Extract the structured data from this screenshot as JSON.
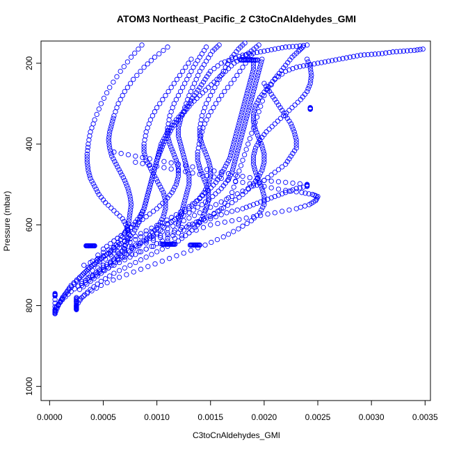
{
  "chart_data": {
    "type": "scatter",
    "title": "ATOM3 Northeast_Pacific_2 C3toCnAldehydes_GMI",
    "xlabel": "C3toCnAldehydes_GMI",
    "ylabel": "Pressure (mbar)",
    "xlim": [
      -8e-05,
      0.00355
    ],
    "ylim": [
      1035,
      145
    ],
    "y_reversed": true,
    "x_ticks": [
      "0.0000",
      "0.0005",
      "0.0010",
      "0.0015",
      "0.0020",
      "0.0025",
      "0.0030",
      "0.0035"
    ],
    "x_tick_values": [
      0,
      0.0005,
      0.001,
      0.0015,
      0.002,
      0.0025,
      0.003,
      0.0035
    ],
    "y_ticks": [
      "200",
      "400",
      "600",
      "800",
      "1000"
    ],
    "y_tick_values": [
      200,
      400,
      600,
      800,
      1000
    ],
    "marker": "open-circle",
    "color": "#0000ff",
    "grid": false,
    "series": [
      {
        "x": [
          5e-05,
          8e-05,
          0.00012,
          0.00018,
          0.00025,
          0.00032,
          0.0004,
          0.0005,
          0.0006,
          0.0007,
          0.00078,
          0.00082,
          0.00085,
          0.00088,
          0.0009,
          0.00092,
          0.00094,
          0.00096,
          0.00098,
          0.001,
          0.00102,
          0.00104,
          0.00108,
          0.00112,
          0.00118,
          0.00125,
          0.0013,
          0.00135,
          0.0014,
          0.00145,
          0.0015,
          0.0016,
          0.0017,
          0.0018,
          0.0019,
          0.002,
          0.0021,
          0.0022,
          0.0023,
          0.0024
        ],
        "y": [
          820,
          800,
          780,
          760,
          740,
          720,
          700,
          680,
          660,
          640,
          620,
          600,
          580,
          560,
          540,
          520,
          500,
          480,
          460,
          440,
          420,
          400,
          380,
          360,
          340,
          320,
          300,
          280,
          260,
          240,
          220,
          200,
          190,
          180,
          175,
          170,
          165,
          160,
          158,
          155
        ]
      },
      {
        "x": [
          5e-05,
          0.0001,
          0.00015,
          0.0002,
          0.00028,
          0.00036,
          0.00045,
          0.00055,
          0.00062,
          0.00068,
          0.00072,
          0.00074,
          0.00075,
          0.00076,
          0.00075,
          0.00073,
          0.0007,
          0.00066,
          0.00062,
          0.00058,
          0.00056,
          0.00055,
          0.00056,
          0.00058,
          0.0006,
          0.00064,
          0.0007,
          0.00078,
          0.00088,
          0.00098,
          0.0011
        ],
        "y": [
          810,
          790,
          770,
          750,
          730,
          710,
          690,
          670,
          650,
          630,
          610,
          590,
          570,
          550,
          530,
          510,
          490,
          470,
          450,
          430,
          410,
          390,
          370,
          350,
          330,
          300,
          270,
          240,
          210,
          185,
          160
        ]
      },
      {
        "x": [
          6e-05,
          0.00012,
          0.0002,
          0.0003,
          0.0004,
          0.0005,
          0.0006,
          0.00068,
          0.00072,
          0.00074,
          0.00072,
          0.00068,
          0.0006,
          0.00052,
          0.00046,
          0.00042,
          0.00038,
          0.00036,
          0.00035,
          0.00035,
          0.00036,
          0.00038,
          0.00042,
          0.00048,
          0.00056,
          0.00066,
          0.00076,
          0.00086
        ],
        "y": [
          805,
          785,
          765,
          745,
          725,
          705,
          685,
          665,
          645,
          625,
          605,
          585,
          565,
          545,
          525,
          505,
          485,
          465,
          445,
          425,
          400,
          370,
          340,
          300,
          260,
          220,
          185,
          155
        ]
      },
      {
        "x": [
          0.00025,
          0.0003,
          0.00038,
          0.00048,
          0.0006,
          0.00075,
          0.0009,
          0.00105,
          0.0012,
          0.0013,
          0.00138,
          0.00143,
          0.00146,
          0.00148,
          0.00148,
          0.00146,
          0.00143,
          0.0014,
          0.00138,
          0.00138,
          0.0014,
          0.00143,
          0.00148,
          0.00155,
          0.00163,
          0.00172,
          0.0018,
          0.00188
        ],
        "y": [
          800,
          780,
          760,
          740,
          720,
          700,
          680,
          660,
          640,
          620,
          600,
          580,
          560,
          540,
          520,
          500,
          480,
          460,
          440,
          420,
          390,
          360,
          330,
          300,
          270,
          240,
          210,
          180
        ]
      },
      {
        "x": [
          0.00025,
          0.00035,
          0.00048,
          0.00065,
          0.00085,
          0.00105,
          0.00125,
          0.00145,
          0.00162,
          0.00176,
          0.00188,
          0.00196,
          0.002,
          0.002,
          0.00198,
          0.00195,
          0.00192,
          0.0019,
          0.0019,
          0.00192,
          0.00196,
          0.00202,
          0.0021,
          0.00218,
          0.00226,
          0.00234,
          0.0024,
          0.00243,
          0.00244,
          0.00243,
          0.0024
        ],
        "y": [
          790,
          770,
          750,
          730,
          710,
          690,
          670,
          650,
          630,
          610,
          590,
          570,
          550,
          530,
          510,
          490,
          470,
          450,
          430,
          410,
          390,
          370,
          350,
          330,
          310,
          290,
          270,
          250,
          230,
          210,
          190
        ]
      },
      {
        "x": [
          0.00035,
          0.0005,
          0.0007,
          0.0009,
          0.0011,
          0.0013,
          0.0015,
          0.0017,
          0.0019,
          0.0021,
          0.0023,
          0.00242,
          0.00248,
          0.0025,
          0.00245,
          0.00235,
          0.0022,
          0.002,
          0.0018,
          0.0016,
          0.0014,
          0.0012,
          0.001,
          0.0008
        ],
        "y": [
          720,
          700,
          680,
          660,
          640,
          620,
          600,
          590,
          580,
          570,
          560,
          550,
          540,
          530,
          525,
          520,
          515,
          505,
          495,
          485,
          475,
          465,
          455,
          445
        ]
      },
      {
        "x": [
          0.0003,
          0.00045,
          0.0006,
          0.00075,
          0.0009,
          0.00105,
          0.0012,
          0.00135,
          0.0015,
          0.00165,
          0.0018,
          0.0019,
          0.002,
          0.0021,
          0.0022,
          0.0023,
          0.0024,
          0.0024,
          0.0022,
          0.002,
          0.0018,
          0.0016,
          0.0014,
          0.0012,
          0.001,
          0.0008,
          0.0006
        ],
        "y": [
          740,
          720,
          700,
          680,
          660,
          640,
          620,
          600,
          585,
          570,
          560,
          550,
          540,
          530,
          520,
          510,
          505,
          500,
          495,
          490,
          480,
          470,
          460,
          450,
          440,
          430,
          420
        ]
      },
      {
        "x": [
          0.00032,
          0.0005,
          0.0007,
          0.0009,
          0.0011,
          0.0013,
          0.0015,
          0.0016,
          0.0017,
          0.00175,
          0.0018,
          0.00185,
          0.0019,
          0.00195,
          0.002,
          0.0021,
          0.0022,
          0.0023,
          0.0024,
          0.0025,
          0.0026,
          0.0027,
          0.0028,
          0.0029,
          0.003,
          0.0031,
          0.0032,
          0.0033,
          0.0034,
          0.00348
        ],
        "y": [
          700,
          680,
          660,
          640,
          620,
          600,
          580,
          560,
          520,
          480,
          440,
          400,
          360,
          320,
          280,
          240,
          220,
          210,
          205,
          200,
          195,
          190,
          185,
          180,
          178,
          176,
          172,
          170,
          168,
          165
        ]
      },
      {
        "x": [
          0.0004,
          0.00055,
          0.0007,
          0.00085,
          0.001,
          0.00115,
          0.0013,
          0.00142,
          0.00152,
          0.0016,
          0.00166,
          0.0017,
          0.00172,
          0.00174,
          0.00176,
          0.00178,
          0.0018,
          0.00182,
          0.00184,
          0.00186,
          0.00188,
          0.0019,
          0.00192,
          0.00194,
          0.00196,
          0.00198
        ],
        "y": [
          690,
          670,
          650,
          630,
          610,
          590,
          570,
          550,
          530,
          510,
          490,
          470,
          450,
          430,
          410,
          390,
          370,
          350,
          330,
          310,
          290,
          270,
          250,
          230,
          210,
          190
        ]
      },
      {
        "x": [
          0.00045,
          0.0006,
          0.00075,
          0.0009,
          0.00105,
          0.00118,
          0.0013,
          0.0014,
          0.00148,
          0.00155,
          0.0016,
          0.00164,
          0.00168,
          0.0017,
          0.00172,
          0.00174,
          0.00176,
          0.00178,
          0.0018,
          0.00182,
          0.00184,
          0.00186,
          0.00188,
          0.0019,
          0.0019
        ],
        "y": [
          675,
          655,
          635,
          615,
          595,
          575,
          555,
          535,
          515,
          495,
          475,
          455,
          435,
          415,
          395,
          375,
          355,
          335,
          315,
          295,
          275,
          255,
          235,
          215,
          195
        ]
      },
      {
        "x": [
          0.0005,
          0.0006,
          0.0007,
          0.00078,
          0.00084,
          0.00088,
          0.0009,
          0.00092,
          0.00094,
          0.00096,
          0.00098,
          0.001,
          0.00103,
          0.00106,
          0.0011,
          0.00114,
          0.0012,
          0.00126,
          0.00132,
          0.0014,
          0.00148,
          0.00156,
          0.00164,
          0.00172,
          0.0018,
          0.00188,
          0.00195
        ],
        "y": [
          660,
          640,
          620,
          600,
          580,
          560,
          540,
          520,
          500,
          480,
          460,
          440,
          420,
          400,
          380,
          360,
          340,
          320,
          300,
          280,
          260,
          240,
          220,
          200,
          185,
          170,
          155
        ]
      },
      {
        "x": [
          0.0003,
          0.0004,
          0.0005,
          0.0006,
          0.0007,
          0.0008,
          0.00095,
          0.0011,
          0.00125,
          0.0014,
          0.00155,
          0.0017,
          0.00185,
          0.002,
          0.0021,
          0.0022,
          0.00225,
          0.0023,
          0.0023,
          0.00228,
          0.00225,
          0.0022,
          0.00215,
          0.0021,
          0.00205,
          0.002
        ],
        "y": [
          750,
          730,
          710,
          690,
          670,
          650,
          630,
          610,
          590,
          570,
          550,
          530,
          510,
          490,
          470,
          450,
          430,
          410,
          390,
          370,
          350,
          330,
          310,
          290,
          270,
          250
        ]
      },
      {
        "x": [
          0.00028,
          0.00038,
          0.00048,
          0.00058,
          0.00068,
          0.00078,
          0.00088,
          0.00096,
          0.00102,
          0.00106,
          0.00108,
          0.00108,
          0.00106,
          0.00102,
          0.00098,
          0.00094,
          0.0009,
          0.00088,
          0.00088,
          0.0009,
          0.00094,
          0.001,
          0.00108,
          0.00116,
          0.00124,
          0.00132
        ],
        "y": [
          760,
          740,
          720,
          700,
          680,
          660,
          640,
          620,
          600,
          580,
          560,
          540,
          520,
          500,
          480,
          460,
          440,
          420,
          400,
          370,
          340,
          310,
          280,
          250,
          220,
          190
        ]
      },
      {
        "x": [
          0.00036,
          0.00052,
          0.0007,
          0.0009,
          0.0011,
          0.00128,
          0.00144,
          0.00158,
          0.0017,
          0.0018,
          0.00188,
          0.00194,
          0.00198,
          0.002,
          0.002,
          0.00198,
          0.00195,
          0.00192,
          0.0019,
          0.0019,
          0.00192,
          0.00196,
          0.00202,
          0.00208,
          0.00214,
          0.0022,
          0.00226,
          0.00232,
          0.00236
        ],
        "y": [
          705,
          685,
          665,
          645,
          625,
          605,
          585,
          565,
          545,
          525,
          505,
          485,
          465,
          445,
          425,
          405,
          385,
          365,
          345,
          325,
          305,
          285,
          265,
          245,
          225,
          205,
          185,
          170,
          160
        ]
      },
      {
        "x": [
          0.0012,
          0.00122,
          0.00124,
          0.00126,
          0.00128,
          0.0013,
          0.0013,
          0.00128,
          0.00126,
          0.00124,
          0.00122,
          0.0012,
          0.0012,
          0.00122,
          0.00126,
          0.0013,
          0.00135,
          0.0014,
          0.00146,
          0.00152,
          0.00158
        ],
        "y": [
          600,
          580,
          560,
          540,
          520,
          500,
          480,
          460,
          440,
          420,
          400,
          380,
          360,
          340,
          310,
          280,
          250,
          220,
          195,
          170,
          155
        ]
      },
      {
        "x": [
          0.0009,
          0.001,
          0.0011,
          0.0012,
          0.0013,
          0.00138,
          0.00144,
          0.00148,
          0.0015,
          0.0015,
          0.00148,
          0.00145,
          0.00142,
          0.0014,
          0.0014,
          0.00142,
          0.00146,
          0.00152,
          0.00158,
          0.00164,
          0.0017,
          0.00176,
          0.00182
        ],
        "y": [
          640,
          620,
          600,
          580,
          560,
          540,
          520,
          500,
          480,
          460,
          440,
          420,
          400,
          380,
          360,
          330,
          300,
          270,
          240,
          210,
          185,
          165,
          150
        ]
      },
      {
        "x": [
          0.0006,
          0.0007,
          0.0008,
          0.0009,
          0.001,
          0.00108,
          0.00114,
          0.00118,
          0.0012,
          0.0012,
          0.00118,
          0.00115,
          0.00112,
          0.0011,
          0.0011,
          0.00112,
          0.00116,
          0.00122,
          0.00128,
          0.00134,
          0.0014,
          0.00146
        ],
        "y": [
          640,
          620,
          600,
          580,
          560,
          540,
          520,
          500,
          480,
          460,
          440,
          420,
          400,
          380,
          360,
          330,
          300,
          270,
          240,
          210,
          185,
          160
        ]
      }
    ],
    "dense_segments": [
      {
        "x": [
          0.00034,
          0.00036,
          0.00038,
          0.0004,
          0.00042
        ],
        "y": [
          652,
          652,
          652,
          652,
          652
        ]
      },
      {
        "x": [
          0.00105,
          0.00108,
          0.00111,
          0.00114,
          0.00117
        ],
        "y": [
          648,
          648,
          648,
          648,
          648
        ]
      },
      {
        "x": [
          0.00131,
          0.00134,
          0.00137,
          0.0014
        ],
        "y": [
          650,
          650,
          650,
          650
        ]
      },
      {
        "x": [
          0.00178,
          0.00182,
          0.00186,
          0.0019,
          0.00194
        ],
        "y": [
          192,
          192,
          192,
          192,
          192
        ]
      },
      {
        "x": [
          0.00243,
          0.00243,
          0.00243
        ],
        "y": [
          310,
          312,
          314
        ]
      },
      {
        "x": [
          5e-05,
          5e-05,
          5e-05,
          5e-05
        ],
        "y": [
          770,
          776,
          812,
          820
        ]
      },
      {
        "x": [
          0.00025,
          0.00025,
          0.00025,
          0.00025,
          0.00025
        ],
        "y": [
          780,
          790,
          800,
          805,
          810
        ]
      }
    ]
  }
}
